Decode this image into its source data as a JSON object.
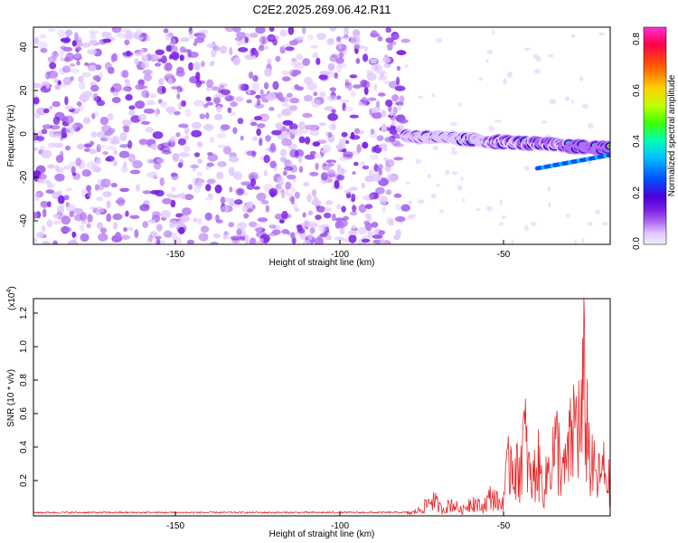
{
  "title": "C2E2.2025.269.06.42.R11",
  "chart_data": [
    {
      "type": "heatmap",
      "title": "C2E2.2025.269.06.42.R11",
      "xlabel": "Height of straight line (km)",
      "ylabel": "Frequency (Hz)",
      "xlim": [
        -195,
        -20
      ],
      "ylim": [
        -50,
        50
      ],
      "x_ticks": [
        -150,
        -100,
        -50
      ],
      "y_ticks": [
        40,
        20,
        0,
        -20,
        -40
      ],
      "colorbar": {
        "label": "Normalized spectral amplitude",
        "range": [
          0.0,
          0.85
        ],
        "ticks": [
          "0.0",
          "0.2",
          "0.4",
          "0.6",
          "0.8"
        ],
        "colors": [
          "#f4ecff",
          "#e0c8ff",
          "#b070f0",
          "#7a1ee6",
          "#4b00d8",
          "#0050ff",
          "#00c0ff",
          "#00ffb0",
          "#40ff00",
          "#c0ff00",
          "#ffd000",
          "#ff5a00",
          "#ff004a",
          "#ff30d0"
        ]
      },
      "regions": [
        {
          "name": "noise",
          "x_range": [
            -195,
            -82
          ],
          "y_range": [
            -50,
            50
          ],
          "amplitude": 0.05
        },
        {
          "name": "signal_track",
          "x_range": [
            -82,
            -20
          ],
          "freq_start": 0,
          "freq_end": -6,
          "amplitude_max": 0.85
        }
      ]
    },
    {
      "type": "line",
      "xlabel": "Height of straight line (km)",
      "ylabel": "SNR (10 * v/v)",
      "multiplier": "(x10",
      "multiplier_exp": "4",
      "xlim": [
        -195,
        -20
      ],
      "ylim": [
        0,
        1.3
      ],
      "x_ticks": [
        -150,
        -100,
        -50
      ],
      "y_ticks": [
        0.2,
        0.4,
        0.6,
        0.8,
        1.0,
        1.2
      ],
      "y_tick_labels": [
        "0.2",
        "0.4",
        "0.6",
        "0.8",
        "1.0",
        "1.2"
      ],
      "line_color": "#e8282a",
      "x": [
        -195,
        -180,
        -160,
        -140,
        -120,
        -100,
        -85,
        -80,
        -77,
        -74,
        -71,
        -68,
        -65,
        -62,
        -59,
        -56,
        -53,
        -50,
        -48,
        -46,
        -44,
        -42,
        -40,
        -38,
        -36,
        -34,
        -32,
        -30,
        -29,
        -28,
        -27,
        -26,
        -25,
        -24,
        -22,
        -20
      ],
      "values": [
        0.02,
        0.02,
        0.02,
        0.02,
        0.02,
        0.02,
        0.02,
        0.03,
        0.07,
        0.17,
        0.06,
        0.12,
        0.05,
        0.15,
        0.08,
        0.2,
        0.1,
        0.62,
        0.4,
        0.78,
        0.3,
        0.52,
        0.25,
        0.6,
        0.68,
        0.4,
        0.7,
        1.02,
        0.75,
        1.28,
        0.9,
        0.5,
        0.45,
        0.35,
        0.45,
        0.3
      ]
    }
  ]
}
